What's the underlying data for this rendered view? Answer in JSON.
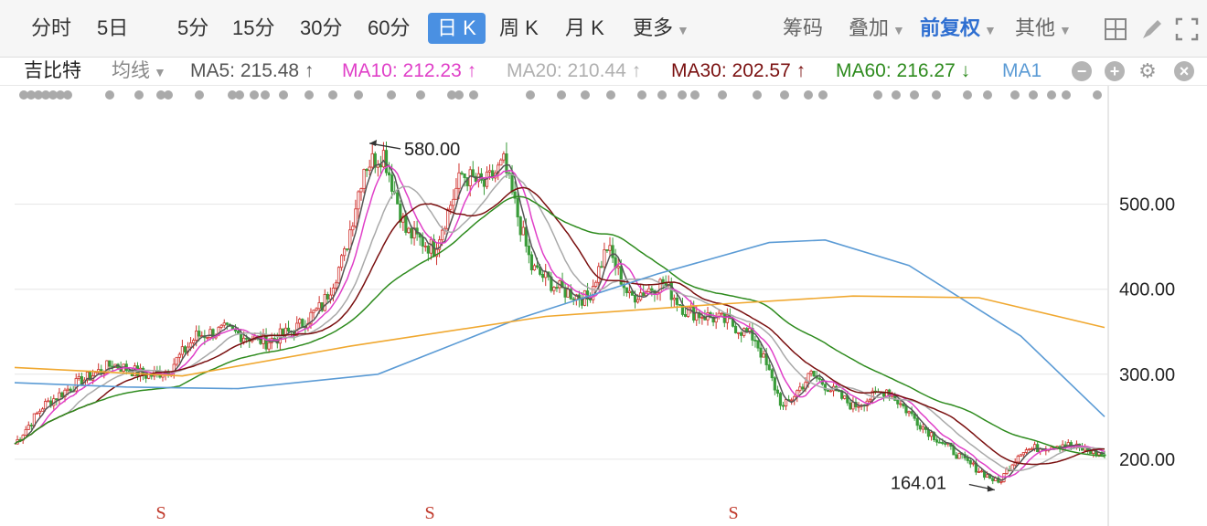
{
  "toolbar": {
    "periods": [
      "分时",
      "5日",
      "5分",
      "15分",
      "30分",
      "60分",
      "日 K",
      "周 K",
      "月 K",
      "更多"
    ],
    "active_index": 6,
    "right": {
      "chips": "筹码",
      "overlay": "叠加",
      "adjust": "前复权",
      "other": "其他"
    },
    "icons": [
      "grid-icon",
      "pen-icon",
      "expand-icon"
    ]
  },
  "legend": {
    "name": "吉比特",
    "avg_label": "均线",
    "ma5": "MA5: 215.48 ↑",
    "ma10": "MA10: 212.23 ↑",
    "ma20": "MA20: 210.44 ↑",
    "ma30": "MA30: 202.57 ↑",
    "ma60": "MA60: 216.27 ↓",
    "ma1": "MA1",
    "colors": {
      "ma5": "#555555",
      "ma10": "#e040c8",
      "ma20": "#a9a9a9",
      "ma30": "#7a1010",
      "ma60": "#2e8b1e",
      "ma120": "#5b9bd5",
      "ma250": "#f0a830"
    }
  },
  "chart_data": {
    "type": "candlestick",
    "y_ticks": [
      "500.00",
      "400.00",
      "300.00",
      "200.00"
    ],
    "ylim": [
      130,
      620
    ],
    "annotations": {
      "high_label": "580.00",
      "low_label": "164.01"
    },
    "markers": [
      "S",
      "S",
      "S"
    ],
    "colors": {
      "up": "#d0312d",
      "down": "#3a9c3a",
      "grid": "#e6e6e6"
    },
    "candle_count": 240,
    "anchors": [
      [
        0,
        218
      ],
      [
        10,
        262
      ],
      [
        20,
        285
      ],
      [
        35,
        312
      ],
      [
        48,
        298
      ],
      [
        55,
        305
      ],
      [
        65,
        345
      ],
      [
        75,
        352
      ],
      [
        90,
        338
      ],
      [
        100,
        352
      ],
      [
        110,
        380
      ],
      [
        118,
        440
      ],
      [
        125,
        545
      ],
      [
        132,
        560
      ],
      [
        140,
        468
      ],
      [
        150,
        448
      ],
      [
        160,
        535
      ],
      [
        168,
        522
      ],
      [
        175,
        548
      ],
      [
        185,
        425
      ],
      [
        195,
        400
      ],
      [
        205,
        388
      ],
      [
        212,
        450
      ],
      [
        220,
        390
      ],
      [
        232,
        408
      ],
      [
        240,
        375
      ],
      [
        255,
        362
      ],
      [
        265,
        342
      ],
      [
        275,
        260
      ],
      [
        285,
        300
      ],
      [
        300,
        262
      ],
      [
        312,
        282
      ],
      [
        325,
        238
      ],
      [
        340,
        198
      ],
      [
        352,
        172
      ],
      [
        360,
        210
      ],
      [
        375,
        218
      ],
      [
        390,
        205
      ]
    ],
    "total_points": 390,
    "ma120_points": [
      [
        0,
        290
      ],
      [
        40,
        285
      ],
      [
        80,
        283
      ],
      [
        130,
        300
      ],
      [
        180,
        365
      ],
      [
        230,
        418
      ],
      [
        270,
        455
      ],
      [
        290,
        458
      ],
      [
        320,
        428
      ],
      [
        360,
        345
      ],
      [
        390,
        250
      ]
    ],
    "ma250_points": [
      [
        0,
        308
      ],
      [
        60,
        298
      ],
      [
        120,
        333
      ],
      [
        190,
        368
      ],
      [
        250,
        382
      ],
      [
        300,
        392
      ],
      [
        345,
        390
      ],
      [
        390,
        355
      ]
    ]
  }
}
